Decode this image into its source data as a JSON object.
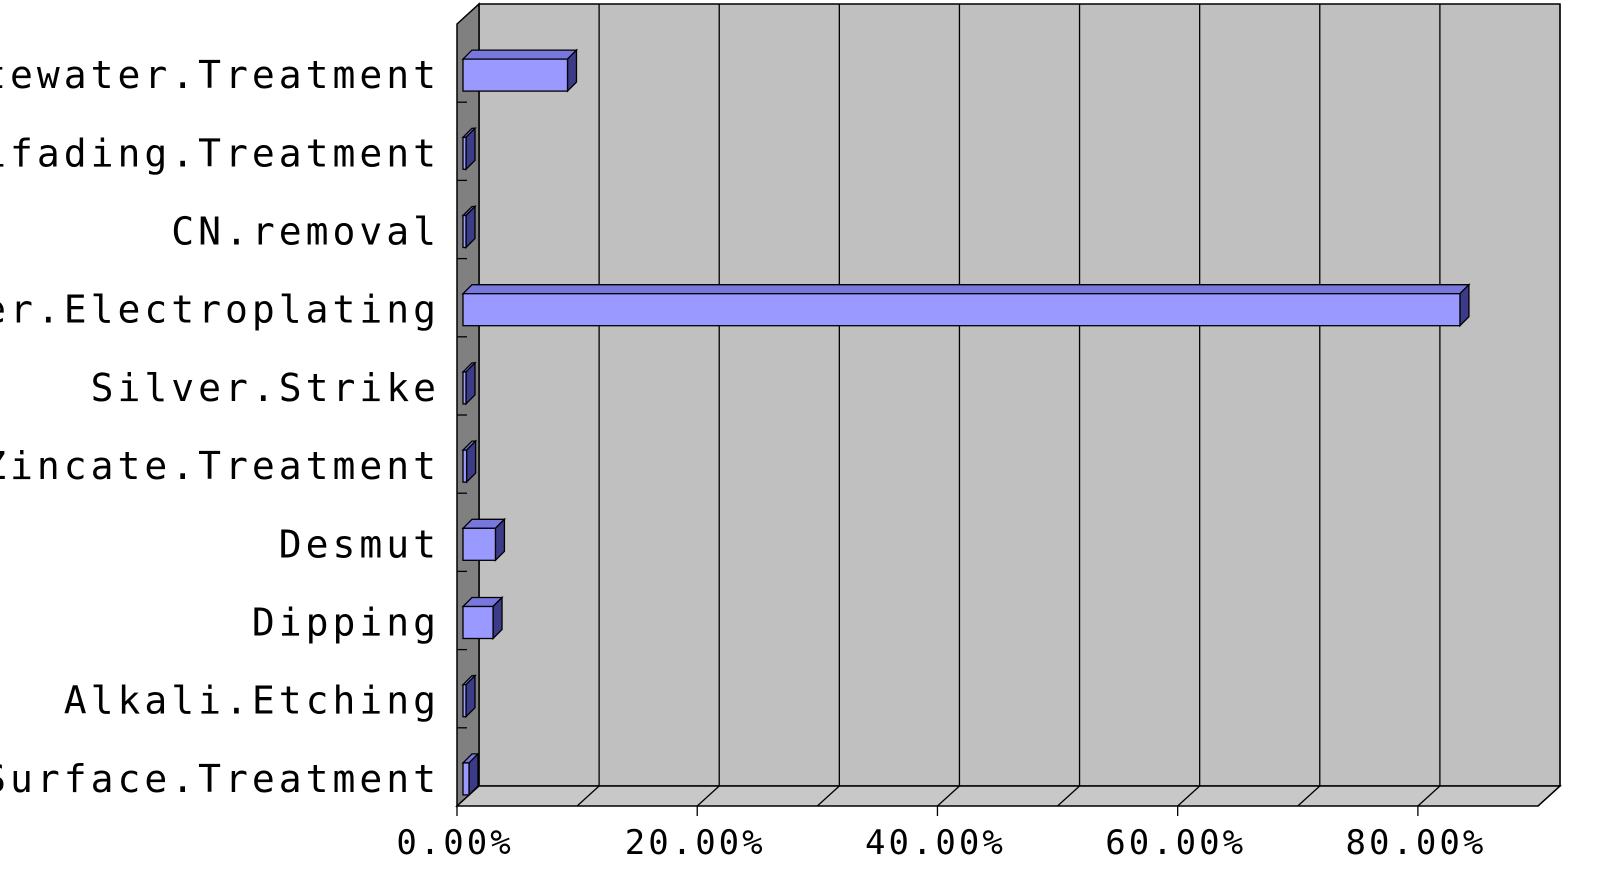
{
  "chart_data": {
    "type": "bar",
    "orientation": "horizontal",
    "style": "3d",
    "categories": [
      "Wastewater.Treatment",
      "Antifading.Treatment",
      "CN.removal",
      "Silver.Electroplating",
      "Silver.Strike",
      "Zincate.Treatment",
      "Desmut",
      "Dipping",
      "Alkali.Etching",
      "Surface.Treatment"
    ],
    "values": [
      9.2,
      0.4,
      0.4,
      83.5,
      0.7,
      0.8,
      3.2,
      3.0,
      0.4,
      1.0
    ],
    "xlim": [
      0,
      90
    ],
    "xticks": [
      "0.00%",
      "20.00%",
      "40.00%",
      "60.00%",
      "80.00%"
    ],
    "title": "",
    "xlabel": "",
    "ylabel": "",
    "grid": true,
    "legend": "none",
    "colors": {
      "bar_front": "#9999ff",
      "bar_top": "#7777dd",
      "bar_side": "#3b3b88",
      "floor": "#c8c8c8",
      "back_wall": "#c0c0c0",
      "side_wall": "#808080",
      "gridline": "#000000"
    }
  }
}
